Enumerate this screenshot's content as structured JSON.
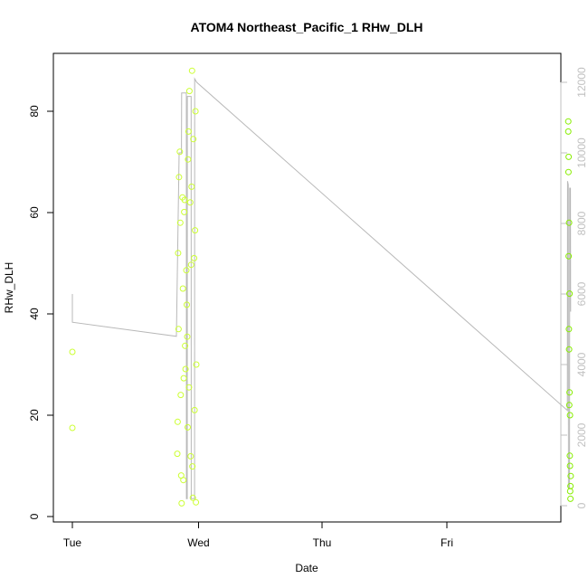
{
  "chart_data": {
    "type": "scatter",
    "title": "ATOM4 Northeast_Pacific_1 RHw_DLH",
    "xlabel": "Date",
    "ylabel": "RHw_DLH",
    "x_ticks": [
      "Tue",
      "Wed",
      "Thu",
      "Fri"
    ],
    "ylim": [
      0,
      90
    ],
    "y_ticks": [
      0,
      20,
      40,
      60,
      80
    ],
    "y2lim": [
      -300,
      12500
    ],
    "y2_ticks": [
      0,
      2000,
      4000,
      6000,
      8000,
      10000,
      12000
    ],
    "grid": false,
    "colors": {
      "points_early": "#ccff33",
      "points_late": "#88ee00",
      "altitude_line": "#b8b8b8",
      "right_axis": "#c0c0c0"
    },
    "series": [
      {
        "x": [
          "Tue 00:00",
          "Tue 00:00",
          "Tue 20:10",
          "Tue 20:25",
          "Tue 20:40",
          "Tue 20:55",
          "Tue 21:10",
          "Tue 21:25",
          "Tue 21:40",
          "Tue 21:55",
          "Tue 22:10",
          "Tue 22:25",
          "Tue 22:40",
          "Tue 22:55",
          "Tue 23:10",
          "Tue 23:25",
          "Tue 23:40",
          "Tue 20:15",
          "Tue 20:45",
          "Tue 21:15",
          "Tue 21:45",
          "Tue 22:15",
          "Tue 22:45",
          "Tue 23:15",
          "Tue 23:45",
          "Tue 20:20",
          "Tue 21:00",
          "Tue 21:30",
          "Tue 22:00",
          "Tue 22:30",
          "Tue 23:00",
          "Tue 23:30",
          "Tue 20:30",
          "Tue 21:20",
          "Tue 22:05",
          "Tue 22:50",
          "Tue 23:35",
          "Tue 20:50",
          "Tue 21:35",
          "Tue 22:20",
          "Tue 23:05",
          "Tue 23:50",
          "Fri 23:20",
          "Fri 23:25",
          "Fri 23:30",
          "Fri 23:35",
          "Fri 23:40",
          "Fri 23:45",
          "Fri 23:20",
          "Fri 23:25",
          "Fri 23:30",
          "Fri 23:35",
          "Fri 23:40",
          "Fri 23:45",
          "Fri 23:22",
          "Fri 23:28",
          "Fri 23:32",
          "Fri 23:38",
          "Fri 23:42",
          "Fri 23:48"
        ],
        "y": [
          32.5,
          17.5,
          12.4,
          37.0,
          72.0,
          8.1,
          63.0,
          27.3,
          33.7,
          48.6,
          17.6,
          25.5,
          62.0,
          65.1,
          3.7,
          51.0,
          80.0,
          18.7,
          58.0,
          45.0,
          29.1,
          70.5,
          11.9,
          74.5,
          2.8,
          52.0,
          2.6,
          60.1,
          41.8,
          84.0,
          88.0,
          21.0,
          67.0,
          7.2,
          35.5,
          49.7,
          56.5,
          24.0,
          62.5,
          76.0,
          9.9,
          30.0,
          78.0,
          71.0,
          58.0,
          44.0,
          20.0,
          6.0,
          76.0,
          51.4,
          33.0,
          24.5,
          10.0,
          3.5,
          68.0,
          37.0,
          22.0,
          12.0,
          5.0,
          8.0
        ]
      },
      {
        "x": [
          "Tue 00:00",
          "Tue 00:00",
          "Tue 20:00",
          "Tue 20:30",
          "Tue 20:31",
          "Tue 20:58",
          "Tue 21:00",
          "Tue 21:55",
          "Tue 21:56",
          "Tue 22:05",
          "Tue 22:06",
          "Tue 22:50",
          "Tue 22:51",
          "Tue 23:30",
          "Tue 23:31",
          "Tue 23:55",
          "Fri 23:10",
          "Fri 23:12",
          "Fri 23:20",
          "Fri 23:22",
          "Fri 23:35",
          "Fri 23:37",
          "Fri 23:45",
          "Fri 23:47"
        ],
        "y": [
          6000,
          5200,
          4800,
          9800,
          10000,
          10000,
          11700,
          11700,
          200,
          200,
          11600,
          11600,
          200,
          200,
          12100,
          12000,
          2700,
          9200,
          9100,
          500,
          500,
          9000,
          9000,
          5500
        ]
      }
    ]
  }
}
